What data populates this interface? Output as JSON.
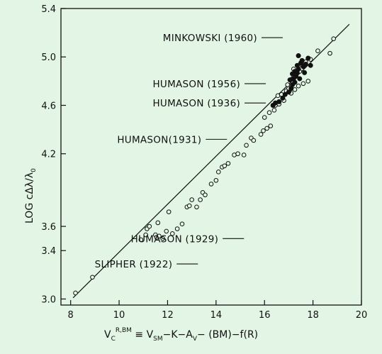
{
  "chart_data": {
    "type": "scatter",
    "title": "",
    "xlabel_parts": {
      "base": "V",
      "sub": "C",
      "sup": "R,BM",
      "rest_1": " ≡ V",
      "sub_2": "SM",
      "rest_2": "−K−A",
      "sub_3": "V",
      "rest_3": "− (BM)−f(R)"
    },
    "ylabel_parts": {
      "main": "LOG cΔλ/λ",
      "sub": "0"
    },
    "xlim": [
      7.6,
      20
    ],
    "ylim": [
      2.95,
      5.4
    ],
    "xticks": [
      "8",
      "10",
      "12",
      "14",
      "16",
      "18",
      "20"
    ],
    "yticks": [
      "3.0",
      "3.4",
      "3.6",
      "4.2",
      "4.6",
      "5.0",
      "5.4"
    ],
    "ytick_values": [
      3.0,
      3.4,
      3.6,
      4.2,
      4.6,
      5.0,
      5.4
    ],
    "xtick_values": [
      8,
      10,
      12,
      14,
      16,
      18,
      20
    ],
    "grid": false,
    "fit_line": {
      "x": [
        8.1,
        19.5
      ],
      "y": [
        3.01,
        5.27
      ]
    },
    "series": [
      {
        "marker": "open",
        "points": [
          [
            8.2,
            3.05
          ],
          [
            8.9,
            3.18
          ],
          [
            10.9,
            3.49
          ],
          [
            11.1,
            3.53
          ],
          [
            11.15,
            3.58
          ],
          [
            11.25,
            3.6
          ],
          [
            11.5,
            3.53
          ],
          [
            11.55,
            3.51
          ],
          [
            11.6,
            3.63
          ],
          [
            11.65,
            3.52
          ],
          [
            11.8,
            3.5
          ],
          [
            11.95,
            3.56
          ],
          [
            12.05,
            3.72
          ],
          [
            12.2,
            3.54
          ],
          [
            12.4,
            3.58
          ],
          [
            12.6,
            3.62
          ],
          [
            12.8,
            3.76
          ],
          [
            12.9,
            3.77
          ],
          [
            13.0,
            3.82
          ],
          [
            13.2,
            3.76
          ],
          [
            13.35,
            3.82
          ],
          [
            13.45,
            3.88
          ],
          [
            13.55,
            3.86
          ],
          [
            13.8,
            3.95
          ],
          [
            14.0,
            3.98
          ],
          [
            14.1,
            4.05
          ],
          [
            14.25,
            4.09
          ],
          [
            14.35,
            4.1
          ],
          [
            14.5,
            4.12
          ],
          [
            14.75,
            4.19
          ],
          [
            14.9,
            4.2
          ],
          [
            15.15,
            4.19
          ],
          [
            15.25,
            4.27
          ],
          [
            15.45,
            4.33
          ],
          [
            15.55,
            4.31
          ],
          [
            15.85,
            4.36
          ],
          [
            15.95,
            4.39
          ],
          [
            16.1,
            4.41
          ],
          [
            16.25,
            4.43
          ],
          [
            16.0,
            4.5
          ],
          [
            16.2,
            4.54
          ],
          [
            16.4,
            4.56
          ],
          [
            16.45,
            4.6
          ],
          [
            16.6,
            4.61
          ],
          [
            16.8,
            4.64
          ],
          [
            16.55,
            4.68
          ],
          [
            16.7,
            4.69
          ],
          [
            16.9,
            4.72
          ],
          [
            17.0,
            4.74
          ],
          [
            17.1,
            4.7
          ],
          [
            17.25,
            4.73
          ],
          [
            17.4,
            4.76
          ],
          [
            17.6,
            4.78
          ],
          [
            17.8,
            4.8
          ],
          [
            16.95,
            4.77
          ],
          [
            17.15,
            4.82
          ],
          [
            17.3,
            4.85
          ],
          [
            17.45,
            4.88
          ],
          [
            17.2,
            4.9
          ],
          [
            17.55,
            4.93
          ],
          [
            17.7,
            4.96
          ],
          [
            17.9,
            4.98
          ],
          [
            18.2,
            5.05
          ],
          [
            18.7,
            5.03
          ],
          [
            18.85,
            5.15
          ]
        ]
      },
      {
        "marker": "filled",
        "points": [
          [
            16.35,
            4.6
          ],
          [
            16.45,
            4.62
          ],
          [
            16.6,
            4.63
          ],
          [
            16.75,
            4.66
          ],
          [
            16.85,
            4.69
          ],
          [
            17.0,
            4.71
          ],
          [
            17.1,
            4.74
          ],
          [
            17.15,
            4.77
          ],
          [
            17.25,
            4.79
          ],
          [
            17.2,
            4.82
          ],
          [
            17.3,
            4.84
          ],
          [
            17.35,
            4.87
          ],
          [
            17.25,
            4.88
          ],
          [
            17.4,
            4.9
          ],
          [
            17.35,
            4.93
          ],
          [
            17.5,
            4.95
          ],
          [
            17.6,
            4.92
          ],
          [
            17.7,
            4.94
          ],
          [
            17.55,
            4.97
          ],
          [
            17.8,
            4.99
          ],
          [
            17.4,
            5.01
          ],
          [
            17.15,
            4.86
          ],
          [
            17.05,
            4.81
          ],
          [
            17.45,
            4.82
          ],
          [
            17.65,
            4.87
          ],
          [
            17.9,
            4.93
          ]
        ]
      }
    ],
    "annotations": [
      {
        "text": "MINKOWSKI (1960)",
        "at": [
          15.7,
          5.13
        ]
      },
      {
        "text": "HUMASON (1956)",
        "at": [
          15.0,
          4.75
        ]
      },
      {
        "text": "HUMASON (1936)",
        "at": [
          15.0,
          4.59
        ]
      },
      {
        "text": "HUMASON(1931)",
        "at": [
          13.4,
          4.29
        ]
      },
      {
        "text": "HUMASON (1929)",
        "at": [
          14.1,
          3.47
        ]
      },
      {
        "text": "SLIPHER (1922)",
        "at": [
          12.2,
          3.26
        ]
      }
    ]
  }
}
